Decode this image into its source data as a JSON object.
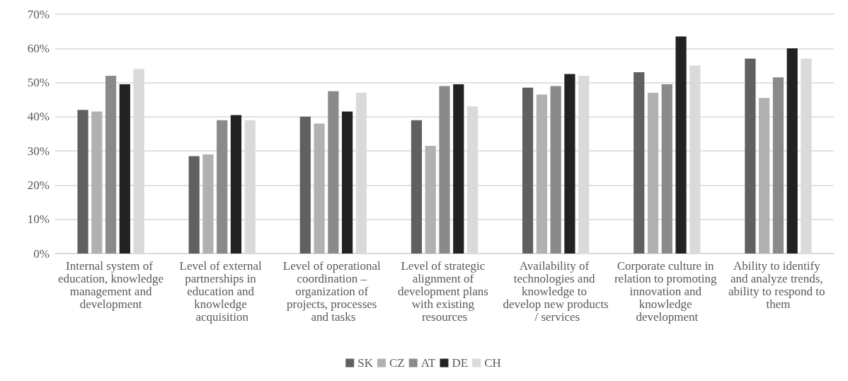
{
  "chart_data": {
    "type": "bar",
    "categories": [
      "Internal system of education, knowledge management and development",
      "Level of external partnerships in education and knowledge acquisition",
      "Level of operational coordination – organization of projects, processes and tasks",
      "Level of strategic alignment of development plans with existing resources",
      "Availability of technologies and knowledge to develop new products / services",
      "Corporate culture in relation to promoting innovation and knowledge development",
      "Ability to identify and analyze trends, ability to respond to them"
    ],
    "series": [
      {
        "name": "SK",
        "color": "#5f605f",
        "values": [
          42,
          28.5,
          40,
          39,
          48.5,
          53,
          57
        ]
      },
      {
        "name": "CZ",
        "color": "#b1b1b1",
        "values": [
          41.5,
          29,
          38,
          31.5,
          46.5,
          47,
          45.5
        ]
      },
      {
        "name": "AT",
        "color": "#8a8a8a",
        "values": [
          52,
          39,
          47.5,
          49,
          49,
          49.5,
          51.5
        ]
      },
      {
        "name": "DE",
        "color": "#222222",
        "values": [
          49.5,
          40.5,
          41.5,
          49.5,
          52.5,
          63.5,
          60
        ]
      },
      {
        "name": "CH",
        "color": "#dadad9",
        "values": [
          54,
          39,
          47,
          43,
          52,
          55,
          57
        ]
      }
    ],
    "ylim": [
      0,
      70
    ],
    "yticks": [
      {
        "value": 0,
        "label": "0%"
      },
      {
        "value": 10,
        "label": "10%"
      },
      {
        "value": 20,
        "label": "20%"
      },
      {
        "value": 30,
        "label": "30%"
      },
      {
        "value": 40,
        "label": "40%"
      },
      {
        "value": 50,
        "label": "50%"
      },
      {
        "value": 60,
        "label": "60%"
      },
      {
        "value": 70,
        "label": "70%"
      }
    ],
    "grid": "y",
    "legend": "bottom"
  }
}
